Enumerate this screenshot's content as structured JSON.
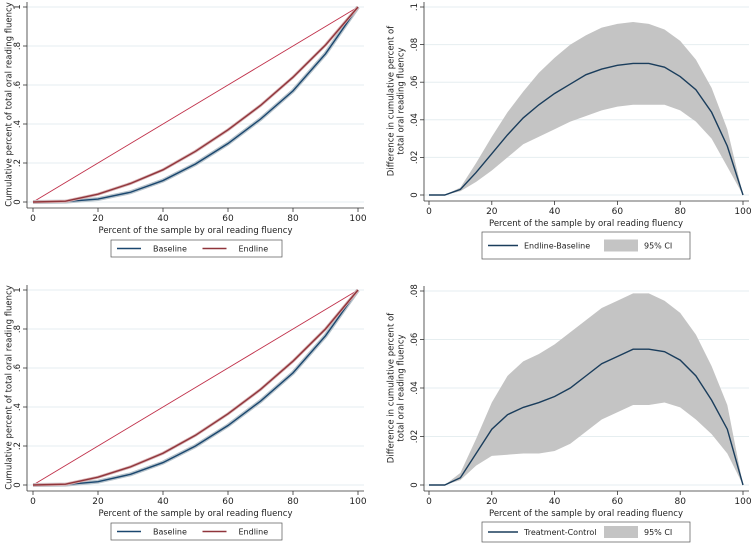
{
  "colors": {
    "baseline": "#1a476f",
    "endline": "#90353b",
    "equality": "#c0304a",
    "diff": "#1a3d5c",
    "ci": "#c4c4c4",
    "grid": "#e6eef0"
  },
  "chart_data": [
    {
      "type": "line",
      "id": "lorenz-top",
      "xlabel": "Percent of the sample by oral reading fluency",
      "ylabel": [
        "Cumulative percent of total oral reading fluency"
      ],
      "xlim": [
        0,
        100
      ],
      "ylim": [
        0,
        1
      ],
      "xticks": [
        0,
        20,
        40,
        60,
        80,
        100
      ],
      "xtick_labels": [
        "0",
        "20",
        "40",
        "60",
        "80",
        "100"
      ],
      "yticks": [
        0,
        0.2,
        0.4,
        0.6,
        0.8,
        1
      ],
      "ytick_labels": [
        "0",
        ".2",
        ".4",
        ".6",
        ".8",
        "1"
      ],
      "x": [
        0,
        10,
        20,
        30,
        40,
        50,
        60,
        70,
        80,
        90,
        100
      ],
      "series": [
        {
          "name": "Equality",
          "values": [
            0,
            0.1,
            0.2,
            0.3,
            0.4,
            0.5,
            0.6,
            0.7,
            0.8,
            0.9,
            1
          ],
          "legend": false
        },
        {
          "name": "Baseline",
          "values": [
            0,
            0.002,
            0.015,
            0.05,
            0.11,
            0.195,
            0.3,
            0.425,
            0.57,
            0.76,
            1
          ]
        },
        {
          "name": "Endline",
          "values": [
            0,
            0.004,
            0.04,
            0.095,
            0.165,
            0.26,
            0.37,
            0.495,
            0.64,
            0.805,
            1
          ]
        }
      ],
      "legend": [
        "Baseline",
        "Endline"
      ]
    },
    {
      "type": "line",
      "id": "diff-top",
      "xlabel": "Percent of the sample by oral reading fluency",
      "ylabel": [
        "Difference in cumulative percent of",
        "total oral reading fluency"
      ],
      "xlim": [
        0,
        100
      ],
      "ylim": [
        0,
        0.1
      ],
      "xticks": [
        0,
        20,
        40,
        60,
        80,
        100
      ],
      "xtick_labels": [
        "0",
        "20",
        "40",
        "60",
        "80",
        "100"
      ],
      "yticks": [
        0,
        0.02,
        0.04,
        0.06,
        0.08,
        0.1
      ],
      "ytick_labels": [
        "0",
        ".02",
        ".04",
        ".06",
        ".08",
        ".1"
      ],
      "x": [
        0,
        5,
        10,
        15,
        20,
        25,
        30,
        35,
        40,
        45,
        50,
        55,
        60,
        65,
        70,
        75,
        80,
        85,
        90,
        95,
        100
      ],
      "series": [
        {
          "name": "Endline-Baseline",
          "values": [
            0,
            0,
            0.003,
            0.012,
            0.022,
            0.032,
            0.041,
            0.048,
            0.054,
            0.059,
            0.064,
            0.067,
            0.069,
            0.07,
            0.07,
            0.068,
            0.063,
            0.056,
            0.044,
            0.026,
            0
          ]
        }
      ],
      "ci": {
        "name": "95% CI",
        "lower": [
          0,
          0,
          0.002,
          0.007,
          0.013,
          0.02,
          0.027,
          0.031,
          0.035,
          0.039,
          0.042,
          0.045,
          0.047,
          0.048,
          0.048,
          0.048,
          0.045,
          0.039,
          0.03,
          0.015,
          0
        ],
        "upper": [
          0,
          0,
          0.004,
          0.017,
          0.031,
          0.044,
          0.055,
          0.065,
          0.073,
          0.08,
          0.085,
          0.089,
          0.091,
          0.092,
          0.091,
          0.088,
          0.082,
          0.072,
          0.057,
          0.035,
          0
        ]
      },
      "legend": [
        "Endline-Baseline",
        "95% CI"
      ]
    },
    {
      "type": "line",
      "id": "lorenz-bottom",
      "xlabel": "Percent of the sample by oral reading fluency",
      "ylabel": [
        "Cumulative percent of total oral reading fluency"
      ],
      "xlim": [
        0,
        100
      ],
      "ylim": [
        0,
        1
      ],
      "xticks": [
        0,
        20,
        40,
        60,
        80,
        100
      ],
      "xtick_labels": [
        "0",
        "20",
        "40",
        "60",
        "80",
        "100"
      ],
      "yticks": [
        0,
        0.2,
        0.4,
        0.6,
        0.8,
        1
      ],
      "ytick_labels": [
        "0",
        ".2",
        ".4",
        ".6",
        ".8",
        "1"
      ],
      "x": [
        0,
        10,
        20,
        30,
        40,
        50,
        60,
        70,
        80,
        90,
        100
      ],
      "series": [
        {
          "name": "Equality",
          "values": [
            0,
            0.1,
            0.2,
            0.3,
            0.4,
            0.5,
            0.6,
            0.7,
            0.8,
            0.9,
            1
          ],
          "legend": false
        },
        {
          "name": "Baseline",
          "values": [
            0,
            0.002,
            0.017,
            0.055,
            0.115,
            0.2,
            0.305,
            0.43,
            0.575,
            0.765,
            1
          ]
        },
        {
          "name": "Endline",
          "values": [
            0,
            0.004,
            0.04,
            0.093,
            0.163,
            0.255,
            0.365,
            0.49,
            0.635,
            0.8,
            1
          ]
        }
      ],
      "legend": [
        "Baseline",
        "Endline"
      ]
    },
    {
      "type": "line",
      "id": "diff-bottom",
      "xlabel": "Percent of the sample by oral reading fluency",
      "ylabel": [
        "Difference in cumulative percent of",
        "total oral reading fluency"
      ],
      "xlim": [
        0,
        100
      ],
      "ylim": [
        0,
        0.08
      ],
      "xticks": [
        0,
        20,
        40,
        60,
        80,
        100
      ],
      "xtick_labels": [
        "0",
        "20",
        "40",
        "60",
        "80",
        "100"
      ],
      "yticks": [
        0,
        0.02,
        0.04,
        0.06,
        0.08
      ],
      "ytick_labels": [
        "0",
        ".02",
        ".04",
        ".06",
        ".08"
      ],
      "x": [
        0,
        5,
        10,
        15,
        20,
        25,
        30,
        35,
        40,
        45,
        50,
        55,
        60,
        65,
        70,
        75,
        80,
        85,
        90,
        95,
        100
      ],
      "series": [
        {
          "name": "Treatment-Control",
          "values": [
            0,
            0,
            0.003,
            0.013,
            0.023,
            0.029,
            0.032,
            0.034,
            0.0365,
            0.04,
            0.045,
            0.05,
            0.053,
            0.056,
            0.056,
            0.055,
            0.0515,
            0.045,
            0.035,
            0.023,
            0
          ]
        }
      ],
      "ci": {
        "name": "95% CI",
        "lower": [
          0,
          0,
          0.002,
          0.008,
          0.012,
          0.0125,
          0.013,
          0.013,
          0.014,
          0.017,
          0.022,
          0.027,
          0.03,
          0.033,
          0.033,
          0.034,
          0.032,
          0.027,
          0.021,
          0.013,
          0
        ],
        "upper": [
          0,
          0,
          0.005,
          0.019,
          0.034,
          0.045,
          0.051,
          0.054,
          0.058,
          0.063,
          0.068,
          0.073,
          0.076,
          0.079,
          0.079,
          0.076,
          0.071,
          0.062,
          0.049,
          0.033,
          0
        ]
      },
      "legend": [
        "Treatment-Control",
        "95% CI"
      ]
    }
  ]
}
